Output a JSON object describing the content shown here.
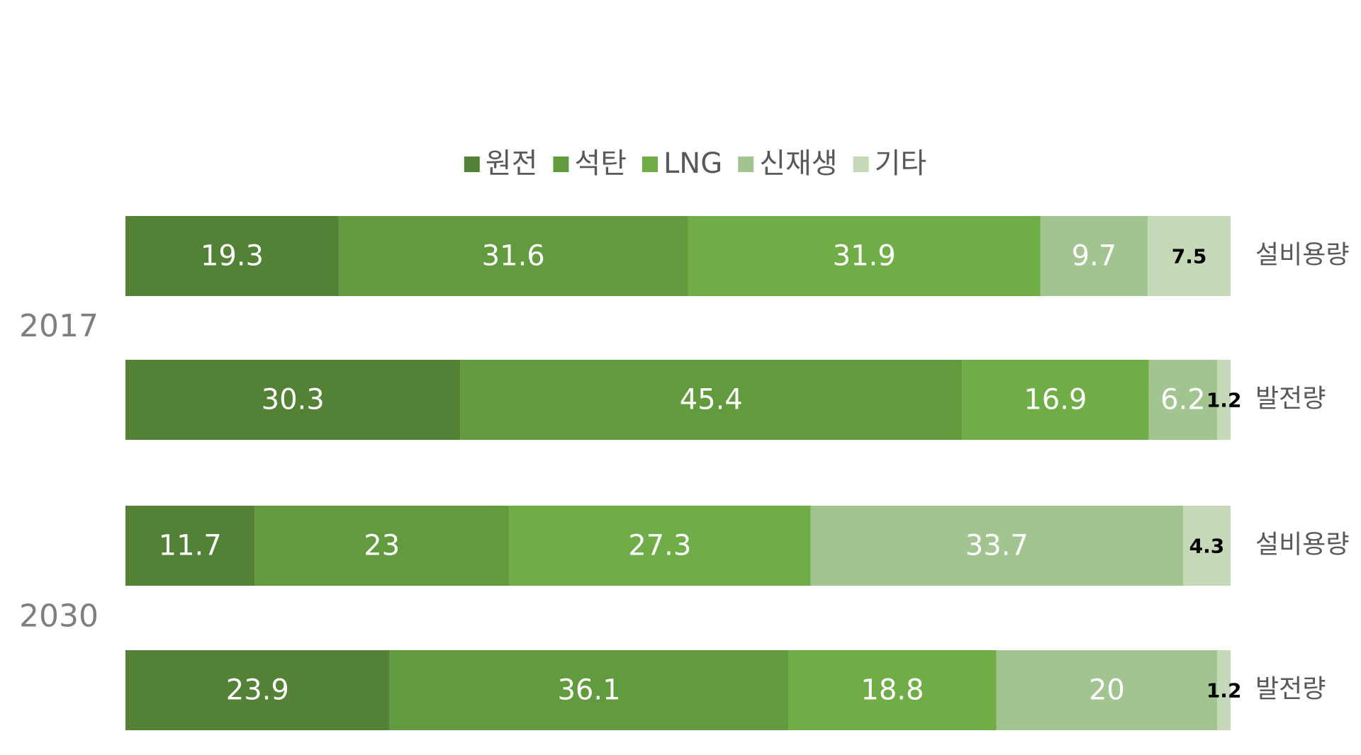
{
  "chart_data": {
    "type": "stacked-bar-horizontal",
    "categories": [
      "설비용량",
      "발전량",
      "설비용량",
      "발전량"
    ],
    "groups": [
      "2017",
      "2030"
    ],
    "xlim": [
      0,
      100
    ],
    "legend_position": "top",
    "series": [
      {
        "name": "원전",
        "color": "#538135",
        "label_color": "#ffffff",
        "values": [
          19.3,
          30.3,
          11.7,
          23.9
        ]
      },
      {
        "name": "석탄",
        "color": "#629a3e",
        "label_color": "#ffffff",
        "values": [
          31.6,
          45.4,
          23,
          36.1
        ]
      },
      {
        "name": "LNG",
        "color": "#70ad47",
        "label_color": "#ffffff",
        "values": [
          31.9,
          16.9,
          27.3,
          18.8
        ]
      },
      {
        "name": "신재생",
        "color": "#a2c490",
        "label_color": "#ffffff",
        "values": [
          9.7,
          6.2,
          33.7,
          20
        ]
      },
      {
        "name": "기타",
        "color": "#c5d9b9",
        "label_color": "#000000",
        "values": [
          7.5,
          1.2,
          4.3,
          1.2
        ]
      }
    ]
  }
}
